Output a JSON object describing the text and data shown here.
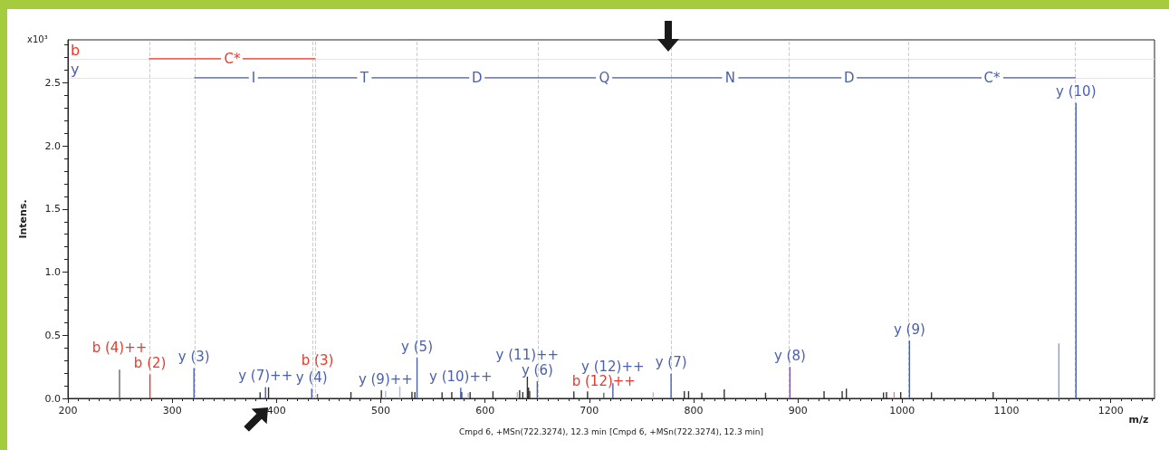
{
  "chart_data": {
    "type": "bar",
    "xlabel": "m/z",
    "ylabel": "Intens.",
    "annotations": [
      "x10³",
      "Cmpd 6, +MSn(722.3274), 12.3 min [Cmpd 6, +MSn(722.3274), 12.3 min]",
      {
        "text": "b (2)",
        "x": 278.7,
        "y": 0.19
      },
      {
        "text": "b (4)++",
        "x": 249.5,
        "y": 0.227
      },
      {
        "text": "y (3)",
        "x": 320.9,
        "y": 0.24
      },
      {
        "text": "y (4)",
        "x": 433.8,
        "y": 0.077
      },
      {
        "text": "b (3)",
        "x": 439.3,
        "y": 0.036
      },
      {
        "text": "y (7)++",
        "x": 389.5,
        "y": 0.09
      },
      {
        "text": "y (9)++",
        "x": 504.7,
        "y": 0.06
      },
      {
        "text": "y (5)",
        "x": 534.8,
        "y": 0.322
      },
      {
        "text": "y (10)++",
        "x": 576.7,
        "y": 0.084
      },
      {
        "text": "y (6)",
        "x": 650.1,
        "y": 0.136
      },
      {
        "text": "y (11)++",
        "x": 640.6,
        "y": 0.172
      },
      {
        "text": "b (12)++",
        "x": 713.9,
        "y": 0.045
      },
      {
        "text": "y (12)++",
        "x": 722.6,
        "y": 0.12
      },
      {
        "text": "y (7)",
        "x": 778.4,
        "y": 0.196
      },
      {
        "text": "y (8)",
        "x": 892.4,
        "y": 0.25
      },
      {
        "text": "y (9)",
        "x": 1007,
        "y": 0.458
      },
      {
        "text": "y (10)",
        "x": 1166.7,
        "y": 2.34
      },
      {
        "text": "C*",
        "x": 357.6,
        "y": 2.69
      },
      {
        "text": "I",
        "x": 378,
        "y": 2.54
      },
      {
        "text": "T",
        "x": 484.3,
        "y": 2.54
      },
      {
        "text": "D",
        "x": 592.4,
        "y": 2.54
      },
      {
        "text": "Q",
        "x": 714.3,
        "y": 2.54
      },
      {
        "text": "N",
        "x": 835,
        "y": 2.54
      },
      {
        "text": "D",
        "x": 949.1,
        "y": 2.54
      },
      {
        "text": "C*",
        "x": 1086.2,
        "y": 2.54
      }
    ],
    "xlim": [
      200,
      1242
    ],
    "xticks": [
      200,
      300,
      400,
      500,
      600,
      700,
      800,
      900,
      1000,
      1100,
      1200
    ],
    "ylim": [
      0,
      2.84
    ],
    "yticks": [
      {
        "value": 0,
        "label": "0.0"
      },
      {
        "value": 0.5,
        "label": "0.5"
      },
      {
        "value": 1,
        "label": "1.0"
      },
      {
        "value": 1.5,
        "label": "1.5"
      },
      {
        "value": 2,
        "label": "2.0"
      },
      {
        "value": 2.5,
        "label": "2.5"
      }
    ],
    "marker": "none",
    "ref_lines": [
      {
        "axis": "x",
        "value": 278.1,
        "color": "#cccccc",
        "line_style": "dashed"
      },
      {
        "axis": "x",
        "value": 437,
        "color": "#cccccc",
        "line_style": "dashed"
      },
      {
        "axis": "x",
        "value": 321.5,
        "color": "#cccccc",
        "line_style": "dashed"
      },
      {
        "axis": "x",
        "value": 434.4,
        "color": "#cccccc",
        "line_style": "dashed"
      },
      {
        "axis": "x",
        "value": 534.2,
        "color": "#cccccc",
        "line_style": "dashed"
      },
      {
        "axis": "x",
        "value": 650.5,
        "color": "#cccccc",
        "line_style": "dashed"
      },
      {
        "axis": "x",
        "value": 778.1,
        "color": "#cccccc",
        "line_style": "dashed"
      },
      {
        "axis": "x",
        "value": 891.8,
        "color": "#cccccc",
        "line_style": "dashed"
      },
      {
        "axis": "x",
        "value": 1006.4,
        "color": "#cccccc",
        "line_style": "dashed"
      },
      {
        "axis": "x",
        "value": 1166,
        "color": "#cccccc",
        "line_style": "dashed"
      },
      {
        "axis": "y",
        "value": 2.69,
        "color": "#e4e4e4"
      },
      {
        "axis": "y",
        "value": 2.54,
        "color": "#e4e4e4"
      }
    ],
    "series": [
      {
        "color": "#e8392c",
        "x": [
          249.5,
          278.7,
          439.3,
          713.9
        ],
        "values": [
          0.227,
          0.19,
          0.036,
          0.045
        ],
        "colors": [
          "#666666",
          "#e8392c",
          "#666666",
          "#666666"
        ]
      },
      {
        "color": "#333333",
        "x": [
          384.3,
          392.4,
          471.4,
          500.6,
          529.9,
          532.7,
          558.8,
          568.1,
          577.6,
          585.7,
          607.6,
          633.2,
          636.2,
          641.7,
          642.8,
          685.2,
          698.3,
          791.1,
          795.2,
          807.9,
          829.4,
          869,
          925.1,
          942.5,
          946.5,
          982.1,
          985,
          998.6,
          1028.1,
          1087.3
        ],
        "values": [
          0.048,
          0.088,
          0.05,
          0.064,
          0.052,
          0.05,
          0.048,
          0.05,
          0.05,
          0.05,
          0.057,
          0.064,
          0.05,
          0.086,
          0.06,
          0.055,
          0.055,
          0.057,
          0.057,
          0.045,
          0.072,
          0.045,
          0.057,
          0.057,
          0.077,
          0.047,
          0.05,
          0.05,
          0.048,
          0.05
        ]
      },
      {
        "color": "#4a5fb0",
        "x": [
          320.9,
          389.5,
          433.8,
          504.7,
          518.3,
          534.8,
          576.7,
          583.9,
          631,
          640.6,
          650.1,
          722.6,
          761.3,
          778.4,
          892.4,
          992.3,
          1007,
          1150.3,
          1166.7
        ],
        "values": [
          0.24,
          0.09,
          0.077,
          0.06,
          0.095,
          0.322,
          0.084,
          0.043,
          0.05,
          0.172,
          0.136,
          0.12,
          0.048,
          0.196,
          0.25,
          0.05,
          0.458,
          0.435,
          2.34
        ],
        "colors": [
          "#4a5fb0",
          "#4a5fb0",
          "#4a5fb0",
          "#a8b8e8",
          "#a8b8e8",
          "#4a5fb0",
          "#4a5fb0",
          "#a8b8e8",
          "#a8b8e8",
          "#333333",
          "#4a5fb0",
          "#4a5fb0",
          "#a8b8e8",
          "#4a5fb0",
          "#7a5aa8",
          "#e080a0",
          "#4a5fb0",
          "#8898d8",
          "#4a5fb0"
        ]
      },
      {
        "type": "line",
        "name": "y",
        "color": "#4a5fb0",
        "x": [
          321.5,
          434.4,
          534.2,
          650.5,
          778.1,
          891.8,
          1006.4,
          1166
        ],
        "values": [
          2.54,
          2.54,
          2.54,
          2.54,
          2.54,
          2.54,
          2.54,
          2.54
        ]
      },
      {
        "type": "line",
        "name": "b",
        "color": "#e8392c",
        "x": [
          278.1,
          437
        ],
        "values": [
          2.69,
          2.69
        ]
      }
    ]
  }
}
